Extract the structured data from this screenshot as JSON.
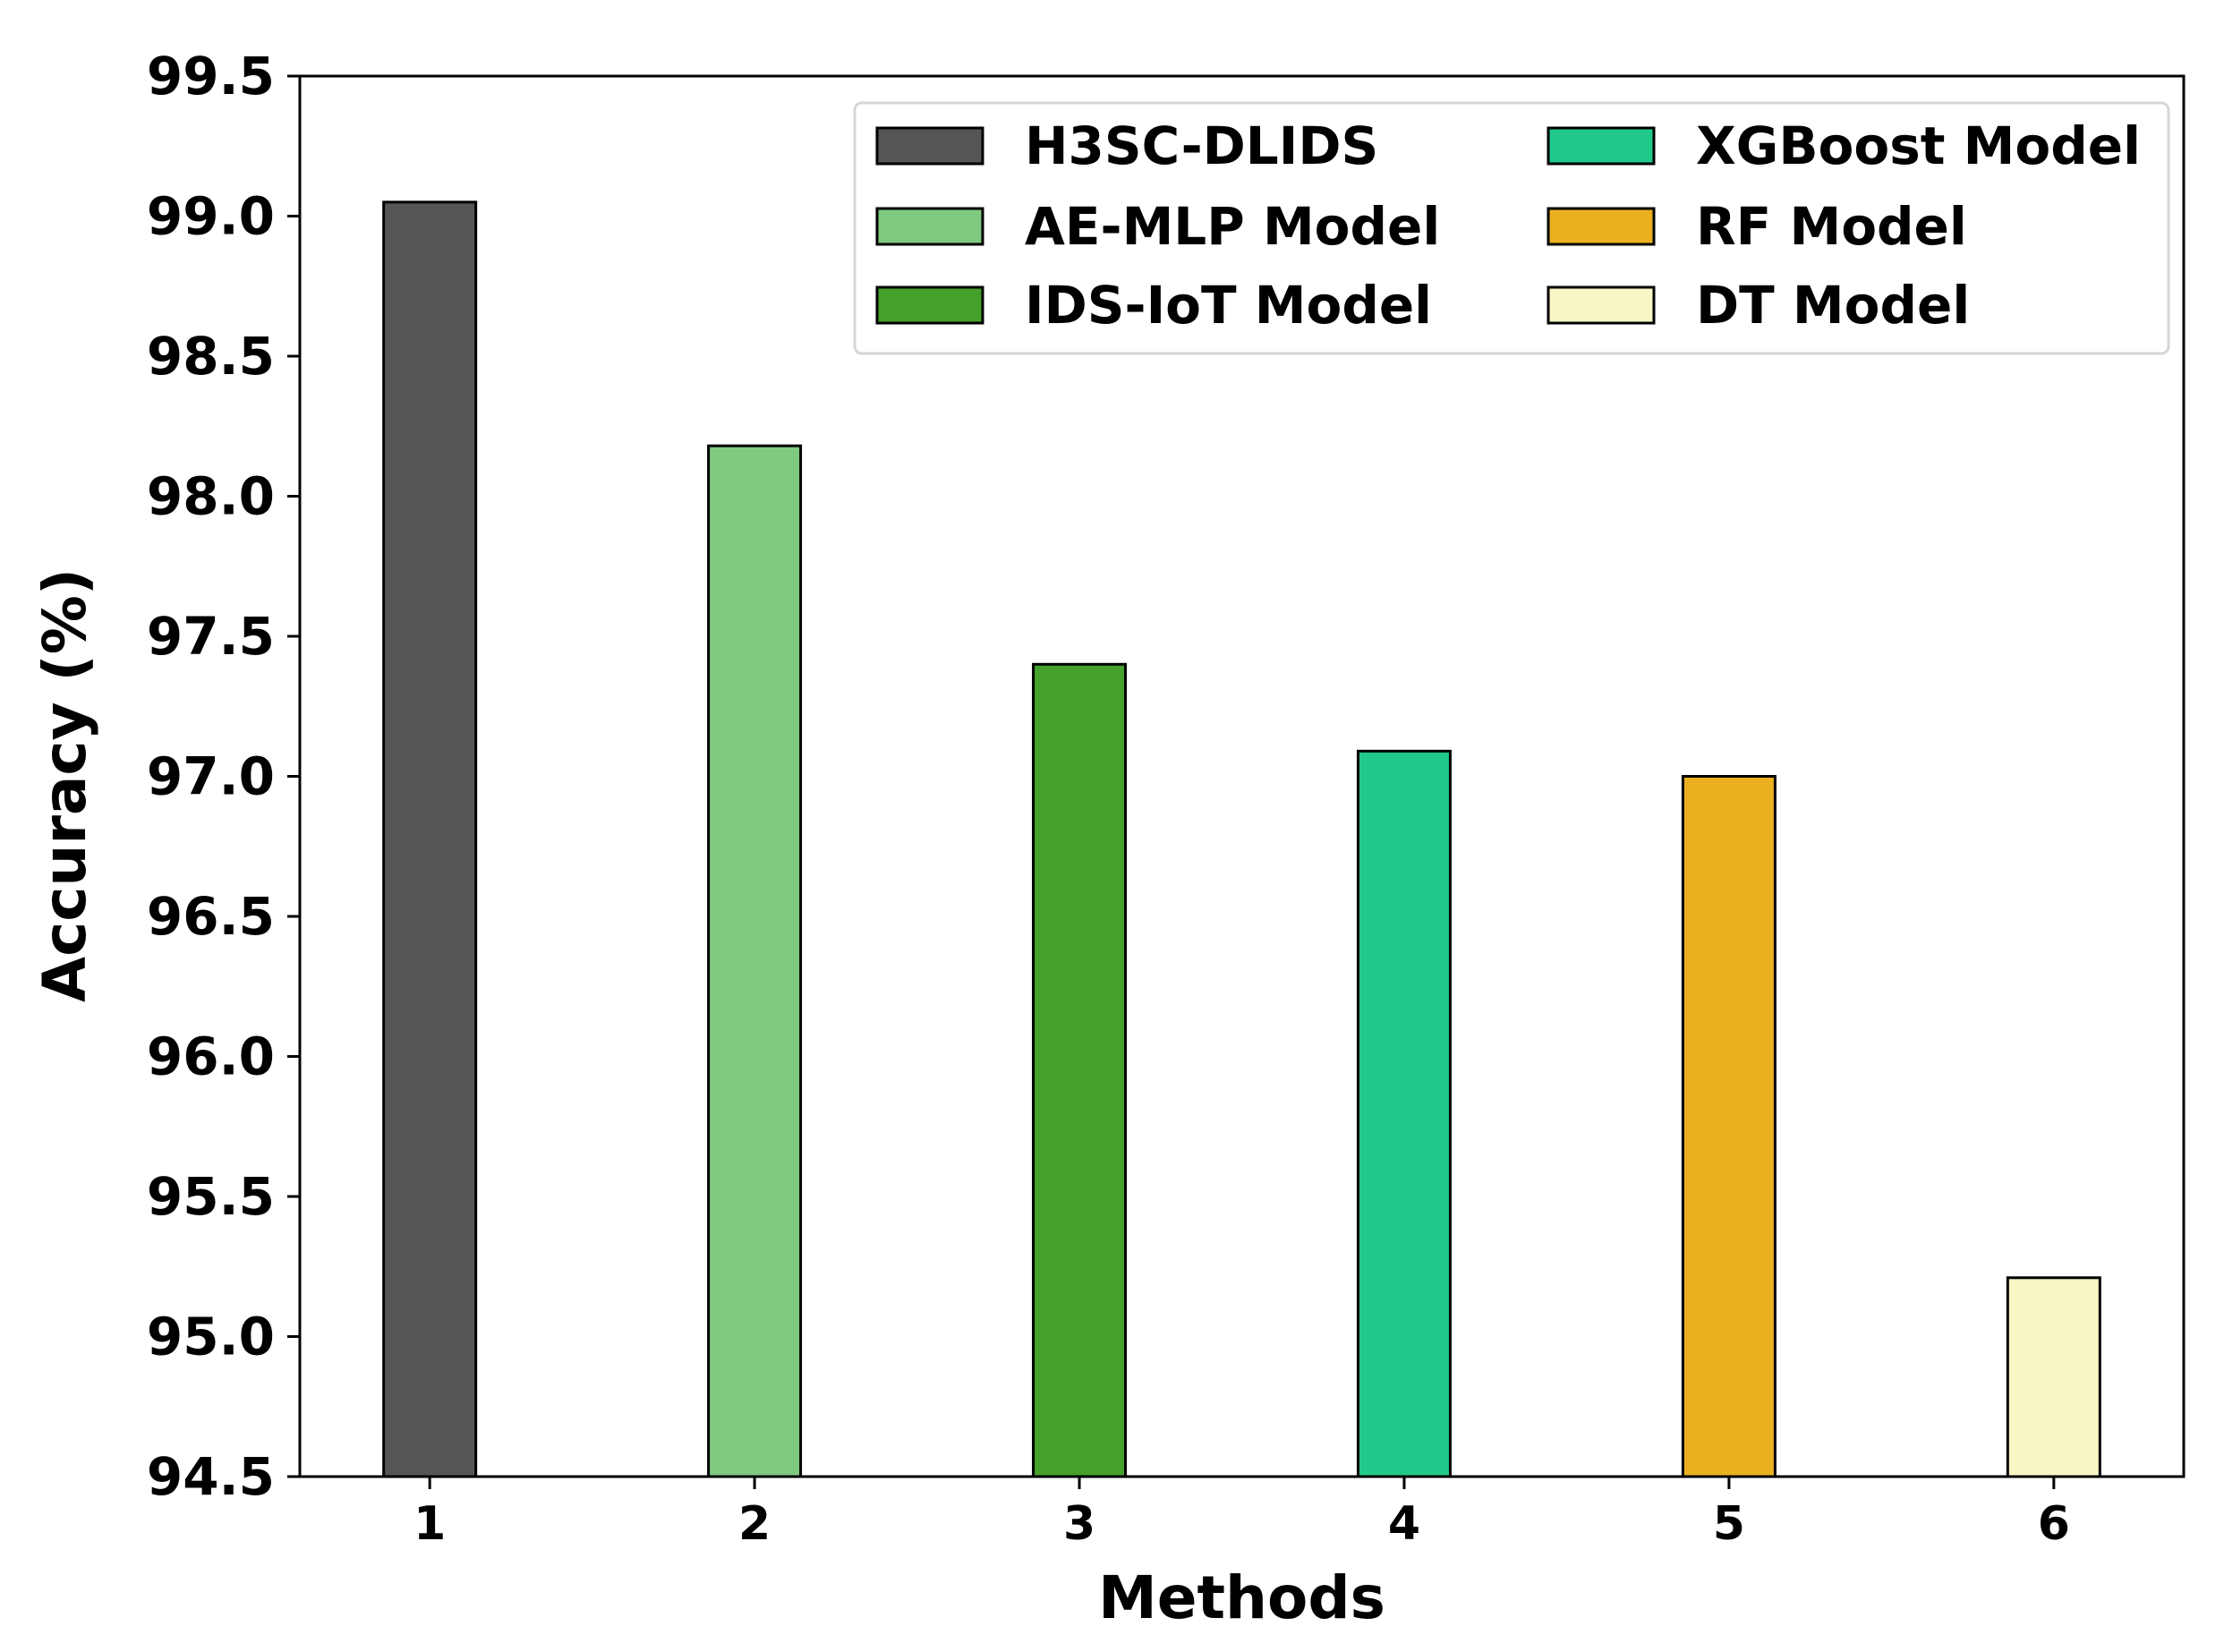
{
  "chart_data": {
    "type": "bar",
    "categories": [
      "1",
      "2",
      "3",
      "4",
      "5",
      "6"
    ],
    "values": [
      99.05,
      98.18,
      97.4,
      97.09,
      97.0,
      95.21
    ],
    "series_labels": [
      "H3SC-DLIDS",
      "AE-MLP Model",
      "IDS-IoT Model",
      "XGBoost Model",
      "RF Model",
      "DT Model"
    ],
    "colors": [
      "#555555",
      "#80c980",
      "#45a02c",
      "#20c98a",
      "#ebb020",
      "#f7f7c6"
    ],
    "xlabel": "Methods",
    "ylabel": "Accuracy (%)",
    "ylim": [
      94.5,
      99.5
    ],
    "yticks": [
      "94.5",
      "95.0",
      "95.5",
      "96.0",
      "96.5",
      "97.0",
      "97.5",
      "98.0",
      "98.5",
      "99.0",
      "99.5"
    ],
    "grid": false,
    "legend_position": "top-right",
    "legend_columns": 2
  }
}
